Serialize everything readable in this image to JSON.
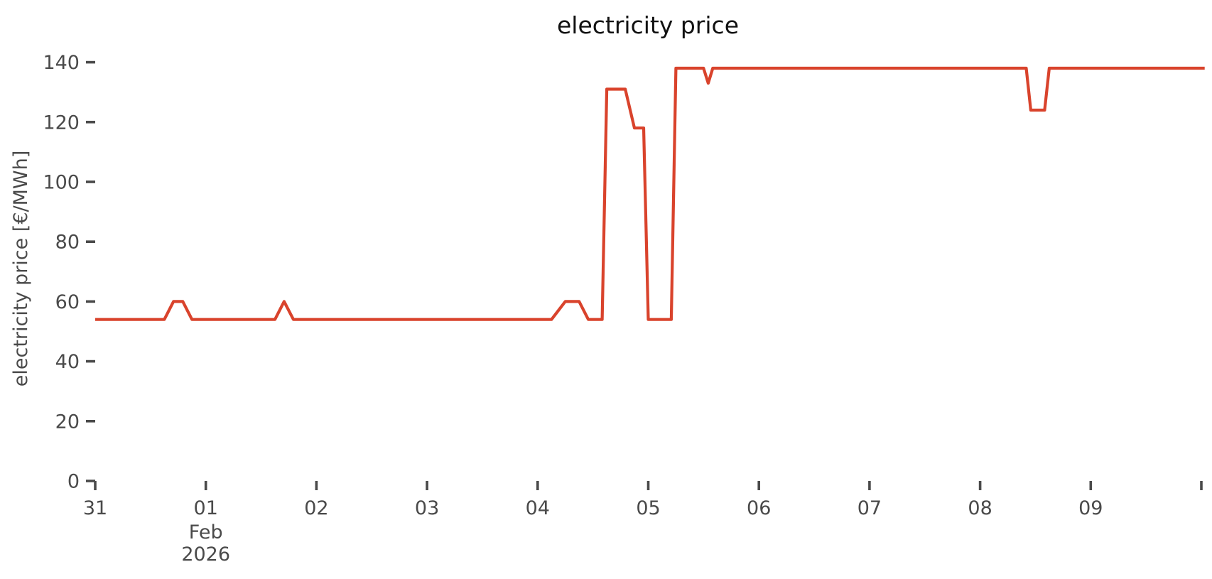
{
  "chart_data": {
    "type": "line",
    "title": "electricity price",
    "ylabel": "electricity price [€/MWh]",
    "xlabel": "",
    "grid": false,
    "legend": null,
    "background_color": "#ffffff",
    "line_color": "#d9432c",
    "text_color": "#4a4a4a",
    "title_color": "#111111",
    "y_axis": {
      "unit": "€/MWh",
      "range": [
        0,
        145
      ],
      "ticks": [
        0,
        20,
        40,
        60,
        80,
        100,
        120,
        140
      ]
    },
    "x_axis": {
      "unit": "days since 2026-01-31 00:00",
      "range": [
        0,
        10.05
      ],
      "ticks": [
        {
          "d": 0,
          "label": "31"
        },
        {
          "d": 1,
          "label": "01"
        },
        {
          "d": 2,
          "label": "02"
        },
        {
          "d": 3,
          "label": "03"
        },
        {
          "d": 4,
          "label": "04"
        },
        {
          "d": 5,
          "label": "05"
        },
        {
          "d": 6,
          "label": "06"
        },
        {
          "d": 7,
          "label": "07"
        },
        {
          "d": 8,
          "label": "08"
        },
        {
          "d": 9,
          "label": "09"
        },
        {
          "d": 10,
          "label": ""
        }
      ],
      "month_label": {
        "d": 1,
        "line1": "Feb",
        "line2": "2026"
      }
    },
    "series": [
      {
        "name": "electricity price",
        "points": [
          [
            0.0,
            54
          ],
          [
            0.625,
            54
          ],
          [
            0.708,
            60
          ],
          [
            0.792,
            60
          ],
          [
            0.875,
            54
          ],
          [
            1.625,
            54
          ],
          [
            1.708,
            60
          ],
          [
            1.792,
            54
          ],
          [
            4.125,
            54
          ],
          [
            4.25,
            60
          ],
          [
            4.375,
            60
          ],
          [
            4.458,
            54
          ],
          [
            4.583,
            54
          ],
          [
            4.625,
            131
          ],
          [
            4.792,
            131
          ],
          [
            4.875,
            118
          ],
          [
            4.958,
            118
          ],
          [
            5.0,
            54
          ],
          [
            5.208,
            54
          ],
          [
            5.25,
            138
          ],
          [
            5.5,
            138
          ],
          [
            5.542,
            133
          ],
          [
            5.583,
            138
          ],
          [
            8.417,
            138
          ],
          [
            8.458,
            124
          ],
          [
            8.583,
            124
          ],
          [
            8.625,
            138
          ],
          [
            10.03,
            138
          ]
        ]
      }
    ]
  }
}
